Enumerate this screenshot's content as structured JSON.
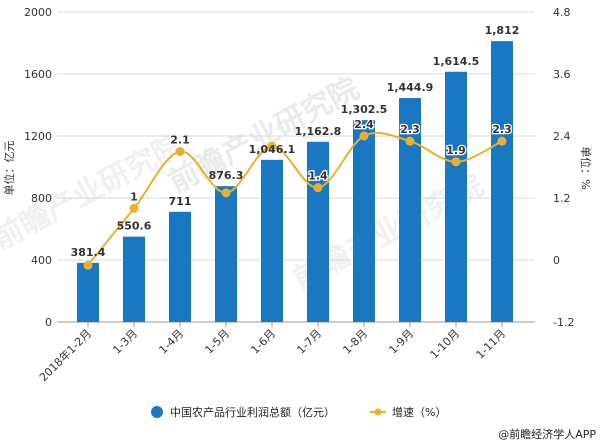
{
  "chart_data": {
    "type": "bar+line",
    "categories": [
      "2018年1-2月",
      "1-3月",
      "1-4月",
      "1-5月",
      "1-6月",
      "1-7月",
      "1-8月",
      "1-9月",
      "1-10月",
      "1-11月"
    ],
    "series": [
      {
        "name": "中国农产品行业利润总额（亿元）",
        "type": "bar",
        "axis": "left",
        "values": [
          381.4,
          550.6,
          711,
          876.3,
          1046.1,
          1162.8,
          1302.5,
          1444.9,
          1614.5,
          1812
        ],
        "labels": [
          "381.4",
          "550.6",
          "711",
          "876.3",
          "1,046.1",
          "1,162.8",
          "1,302.5",
          "1,444.9",
          "1,614.5",
          "1,812"
        ]
      },
      {
        "name": "增速（%）",
        "type": "line",
        "axis": "right",
        "values": [
          -0.1,
          1,
          2.1,
          1.3,
          2.2,
          1.4,
          2.4,
          2.3,
          1.9,
          2.3
        ],
        "labels": [
          "",
          "1",
          "2.1",
          "",
          "",
          "1.4",
          "2.4",
          "2.3",
          "1.9",
          "2.3"
        ]
      }
    ],
    "ylabel": "单位：亿元",
    "y2label": "单位：%",
    "ylim": [
      0,
      2000
    ],
    "y2lim": [
      -1.2,
      4.8
    ],
    "yticks": [
      "0",
      "400",
      "800",
      "1200",
      "1600",
      "2000"
    ],
    "y2ticks": [
      "-1.2",
      "0",
      "1.2",
      "2.4",
      "3.6",
      "4.8"
    ],
    "grid": true,
    "legend_position": "bottom",
    "colors": {
      "bar": "#1a78c2",
      "line": "#e9b02c"
    }
  },
  "source": "@前瞻经济学人APP",
  "watermark": "前瞻产业研究院"
}
